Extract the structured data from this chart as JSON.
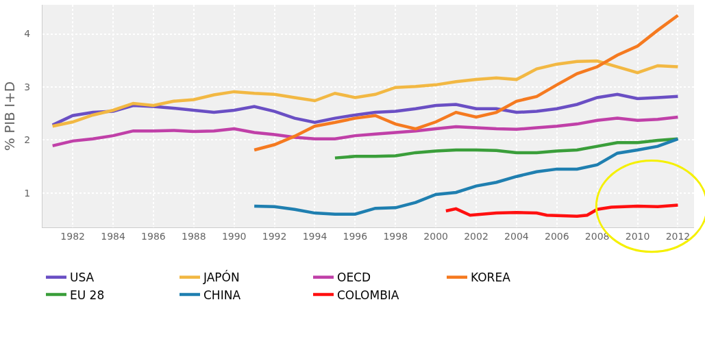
{
  "chart_data": {
    "type": "line",
    "ylabel": "% PIB I+D",
    "xlim": [
      1980.5,
      2012.8
    ],
    "ylim": [
      0.35,
      4.55
    ],
    "xticks": [
      1982,
      1984,
      1986,
      1988,
      1990,
      1992,
      1994,
      1996,
      1998,
      2000,
      2002,
      2004,
      2006,
      2008,
      2010,
      2012
    ],
    "yticks": [
      1,
      2,
      3,
      4
    ],
    "grid": true,
    "legend": "bottom",
    "marker": "none",
    "line_style": "solid",
    "x": [
      1981,
      1982,
      1983,
      1984,
      1985,
      1986,
      1987,
      1988,
      1989,
      1990,
      1991,
      1992,
      1993,
      1994,
      1995,
      1996,
      1997,
      1998,
      1999,
      2000,
      2001,
      2002,
      2003,
      2004,
      2005,
      2006,
      2007,
      2008,
      2009,
      2010,
      2011,
      2012
    ],
    "series": [
      {
        "name": "USA",
        "color": "#6a4fc4",
        "values": [
          2.28,
          2.46,
          2.52,
          2.54,
          2.65,
          2.63,
          2.6,
          2.56,
          2.52,
          2.56,
          2.63,
          2.54,
          2.41,
          2.33,
          2.41,
          2.47,
          2.52,
          2.54,
          2.59,
          2.65,
          2.67,
          2.59,
          2.59,
          2.52,
          2.54,
          2.59,
          2.67,
          2.8,
          2.86,
          2.78,
          2.8,
          2.82
        ]
      },
      {
        "name": "JAPÓN",
        "color": "#f2b843",
        "values": [
          2.26,
          2.34,
          2.47,
          2.56,
          2.69,
          2.65,
          2.73,
          2.76,
          2.85,
          2.91,
          2.88,
          2.86,
          2.8,
          2.74,
          2.88,
          2.8,
          2.86,
          2.99,
          3.01,
          3.04,
          3.1,
          3.14,
          3.17,
          3.14,
          3.34,
          3.43,
          3.48,
          3.49,
          3.38,
          3.27,
          3.4,
          3.38
        ]
      },
      {
        "name": "OECD",
        "color": "#c040a8",
        "values": [
          1.89,
          1.98,
          2.02,
          2.08,
          2.17,
          2.17,
          2.18,
          2.16,
          2.17,
          2.21,
          2.14,
          2.1,
          2.05,
          2.02,
          2.02,
          2.08,
          2.11,
          2.14,
          2.17,
          2.21,
          2.25,
          2.23,
          2.21,
          2.2,
          2.23,
          2.26,
          2.3,
          2.37,
          2.41,
          2.37,
          2.39,
          2.43
        ]
      },
      {
        "name": "KOREA",
        "color": "#f57a20",
        "values": [
          null,
          null,
          null,
          null,
          null,
          null,
          null,
          null,
          null,
          null,
          1.81,
          1.91,
          2.07,
          2.26,
          2.33,
          2.41,
          2.46,
          2.3,
          2.21,
          2.34,
          2.52,
          2.43,
          2.52,
          2.73,
          2.82,
          3.04,
          3.25,
          3.38,
          3.6,
          3.77,
          4.07,
          4.35
        ]
      },
      {
        "name": "EU 28",
        "color": "#3a9e3a",
        "values": [
          null,
          null,
          null,
          null,
          null,
          null,
          null,
          null,
          null,
          null,
          null,
          null,
          null,
          null,
          1.66,
          1.69,
          1.69,
          1.7,
          1.76,
          1.79,
          1.81,
          1.81,
          1.8,
          1.76,
          1.76,
          1.79,
          1.81,
          1.88,
          1.95,
          1.95,
          1.99,
          2.02
        ]
      },
      {
        "name": "CHINA",
        "color": "#1f7fb0",
        "values": [
          null,
          null,
          null,
          null,
          null,
          null,
          null,
          null,
          null,
          null,
          0.75,
          0.74,
          0.69,
          0.62,
          0.6,
          0.6,
          0.71,
          0.72,
          0.82,
          0.97,
          1.01,
          1.13,
          1.2,
          1.31,
          1.4,
          1.45,
          1.45,
          1.53,
          1.75,
          1.81,
          1.88,
          2.02
        ]
      },
      {
        "name": "COLOMBIA",
        "color": "#ff1010",
        "x": [
          2000.5,
          2001,
          2001.7,
          2003,
          2004,
          2005,
          2005.5,
          2007,
          2007.5,
          2008,
          2008.7,
          2010,
          2011,
          2012
        ],
        "values": [
          0.66,
          0.7,
          0.58,
          0.62,
          0.63,
          0.62,
          0.58,
          0.56,
          0.58,
          0.69,
          0.73,
          0.75,
          0.74,
          0.77
        ]
      }
    ]
  }
}
